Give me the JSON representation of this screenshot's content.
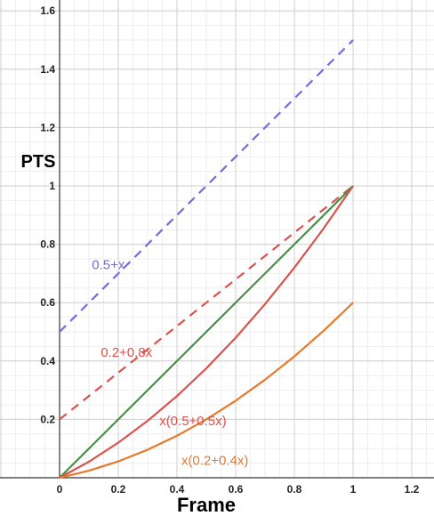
{
  "chart_data": {
    "type": "line",
    "title": "",
    "xlabel": "Frame",
    "ylabel": "PTS",
    "xlim": [
      0,
      1.3
    ],
    "ylim": [
      0,
      1.65
    ],
    "grid": true,
    "minor_grid": true,
    "x_ticks": [
      {
        "value": 0,
        "label": "0"
      },
      {
        "value": 0.2,
        "label": "0.2"
      },
      {
        "value": 0.4,
        "label": "0.4"
      },
      {
        "value": 0.6,
        "label": "0.6"
      },
      {
        "value": 0.8,
        "label": "0.8"
      },
      {
        "value": 1,
        "label": "1"
      },
      {
        "value": 1.2,
        "label": "1.2"
      }
    ],
    "y_ticks": [
      {
        "value": 0.2,
        "label": "0.2"
      },
      {
        "value": 0.4,
        "label": "0.4"
      },
      {
        "value": 0.6,
        "label": "0.6"
      },
      {
        "value": 0.8,
        "label": "0.8"
      },
      {
        "value": 1,
        "label": "1"
      },
      {
        "value": 1.2,
        "label": "1.2"
      },
      {
        "value": 1.4,
        "label": "1.4"
      },
      {
        "value": 1.6,
        "label": "1.6"
      }
    ],
    "series": [
      {
        "name": "0.5+x",
        "color": "#7b68d9",
        "style": "dashed",
        "x": [
          0,
          0.25,
          0.5,
          0.75,
          1
        ],
        "y": [
          0.5,
          0.75,
          1.0,
          1.25,
          1.5
        ],
        "label_at": [
          0.11,
          0.73
        ]
      },
      {
        "name": "0.2+0.8x",
        "color": "#d9534f",
        "style": "dashed",
        "x": [
          0,
          0.25,
          0.5,
          0.75,
          1
        ],
        "y": [
          0.2,
          0.4,
          0.6,
          0.8,
          1.0
        ],
        "label_at": [
          0.14,
          0.43
        ]
      },
      {
        "name": "",
        "color": "#4a8c4a",
        "style": "solid",
        "x": [
          0,
          0.25,
          0.5,
          0.75,
          1
        ],
        "y": [
          0,
          0.25,
          0.5,
          0.75,
          1.0
        ],
        "label_at": null
      },
      {
        "name": "x(0.5+0.5x)",
        "color": "#d9534f",
        "style": "solid",
        "x": [
          0,
          0.1,
          0.2,
          0.3,
          0.4,
          0.5,
          0.6,
          0.7,
          0.8,
          0.9,
          1.0
        ],
        "y": [
          0,
          0.055,
          0.12,
          0.195,
          0.28,
          0.375,
          0.48,
          0.595,
          0.72,
          0.855,
          1.0
        ],
        "label_at": [
          0.34,
          0.195
        ]
      },
      {
        "name": "x(0.2+0.4x)",
        "color": "#e8782a",
        "style": "solid",
        "x": [
          0,
          0.1,
          0.2,
          0.3,
          0.4,
          0.5,
          0.6,
          0.7,
          0.8,
          0.9,
          1.0
        ],
        "y": [
          0,
          0.024,
          0.056,
          0.096,
          0.144,
          0.2,
          0.264,
          0.336,
          0.416,
          0.504,
          0.6
        ],
        "label_at": [
          0.415,
          0.06
        ]
      }
    ]
  }
}
